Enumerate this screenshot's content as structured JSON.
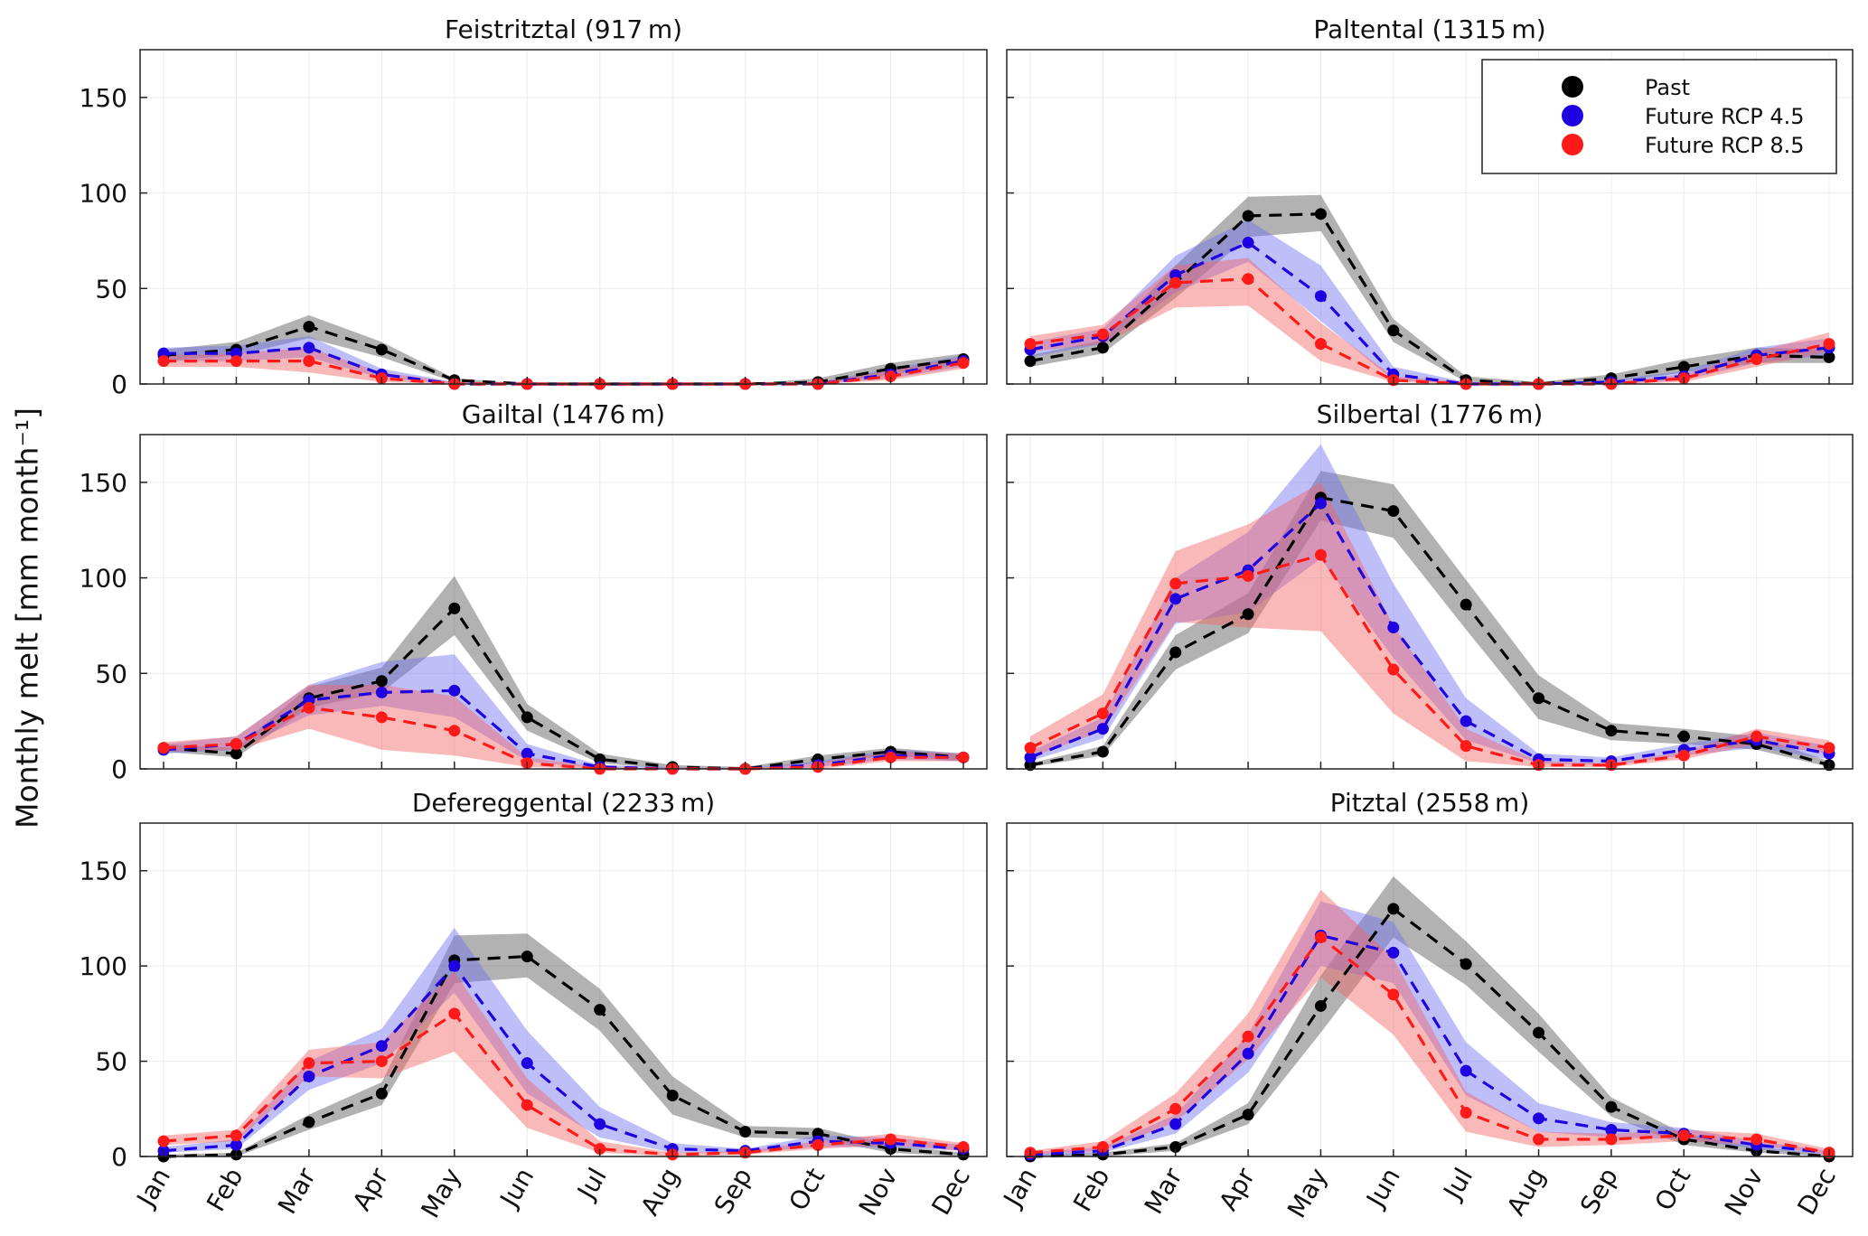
{
  "chart_data": {
    "type": "line",
    "ylabel": "Monthly melt [mm month⁻¹]",
    "ylim": [
      0,
      175
    ],
    "yticks": [
      0,
      50,
      100,
      150
    ],
    "categories": [
      "Jan",
      "Feb",
      "Mar",
      "Apr",
      "May",
      "Jun",
      "Jul",
      "Aug",
      "Sep",
      "Oct",
      "Nov",
      "Dec"
    ],
    "legend": {
      "placement": "top-right of Paltental panel",
      "entries": [
        {
          "name": "Past",
          "color": "#000000"
        },
        {
          "name": "Future RCP 4.5",
          "color": "#1f00e0"
        },
        {
          "name": "Future RCP 8.5",
          "color": "#ff1a1a"
        }
      ]
    },
    "band_colors": {
      "Past": "#555555",
      "Future RCP 4.5": "#6f6ff2",
      "Future RCP 8.5": "#f56464"
    },
    "panels": [
      {
        "title": "Feistritztal (917 m)",
        "series": [
          {
            "name": "Past",
            "values": [
              15,
              18,
              30,
              18,
              2,
              0,
              0,
              0,
              0,
              1,
              8,
              13
            ],
            "lower": [
              12,
              15,
              24,
              14,
              1,
              0,
              0,
              0,
              0,
              0,
              5,
              10
            ],
            "upper": [
              18,
              22,
              36,
              22,
              3,
              0,
              0,
              0,
              0,
              3,
              11,
              16
            ]
          },
          {
            "name": "Future RCP 4.5",
            "values": [
              16,
              16,
              19,
              5,
              0,
              0,
              0,
              0,
              0,
              0,
              5,
              12
            ],
            "lower": [
              12,
              12,
              14,
              3,
              0,
              0,
              0,
              0,
              0,
              0,
              3,
              9
            ],
            "upper": [
              19,
              20,
              25,
              8,
              1,
              0,
              0,
              0,
              0,
              1,
              8,
              15
            ]
          },
          {
            "name": "Future RCP 8.5",
            "values": [
              12,
              12,
              12,
              3,
              0,
              0,
              0,
              0,
              0,
              0,
              4,
              11
            ],
            "lower": [
              9,
              9,
              6,
              1,
              0,
              0,
              0,
              0,
              0,
              0,
              2,
              8
            ],
            "upper": [
              15,
              16,
              19,
              6,
              1,
              0,
              0,
              0,
              0,
              1,
              7,
              14
            ]
          }
        ]
      },
      {
        "title": "Paltental (1315 m)",
        "series": [
          {
            "name": "Past",
            "values": [
              12,
              19,
              53,
              88,
              89,
              28,
              2,
              0,
              3,
              9,
              15,
              14
            ],
            "lower": [
              9,
              16,
              45,
              77,
              80,
              22,
              1,
              0,
              1,
              6,
              11,
              11
            ],
            "upper": [
              15,
              23,
              62,
              98,
              99,
              34,
              4,
              1,
              5,
              13,
              19,
              18
            ]
          },
          {
            "name": "Future RCP 4.5",
            "values": [
              18,
              25,
              57,
              74,
              46,
              5,
              0,
              0,
              1,
              4,
              15,
              19
            ],
            "lower": [
              14,
              21,
              48,
              64,
              33,
              2,
              0,
              0,
              0,
              2,
              11,
              15
            ],
            "upper": [
              22,
              29,
              67,
              86,
              62,
              9,
              1,
              0,
              2,
              7,
              19,
              24
            ]
          },
          {
            "name": "Future RCP 8.5",
            "values": [
              21,
              26,
              53,
              55,
              21,
              2,
              0,
              0,
              0,
              3,
              13,
              21
            ],
            "lower": [
              17,
              21,
              40,
              41,
              12,
              1,
              0,
              0,
              0,
              1,
              9,
              17
            ],
            "upper": [
              25,
              31,
              62,
              66,
              32,
              4,
              1,
              0,
              1,
              5,
              17,
              27
            ]
          }
        ]
      },
      {
        "title": "Gailtal (1476 m)",
        "series": [
          {
            "name": "Past",
            "values": [
              11,
              8,
              37,
              46,
              84,
              27,
              5,
              1,
              0,
              5,
              9,
              6
            ],
            "lower": [
              9,
              6,
              32,
              40,
              70,
              20,
              3,
              0,
              0,
              3,
              7,
              4
            ],
            "upper": [
              13,
              11,
              43,
              53,
              101,
              34,
              8,
              2,
              1,
              7,
              11,
              8
            ]
          },
          {
            "name": "Future RCP 4.5",
            "values": [
              10,
              13,
              36,
              40,
              41,
              8,
              1,
              0,
              0,
              2,
              7,
              6
            ],
            "lower": [
              8,
              10,
              28,
              33,
              27,
              4,
              0,
              0,
              0,
              1,
              5,
              4
            ],
            "upper": [
              13,
              17,
              44,
              56,
              60,
              13,
              2,
              1,
              0,
              4,
              10,
              8
            ]
          },
          {
            "name": "Future RCP 8.5",
            "values": [
              11,
              13,
              32,
              27,
              20,
              3,
              0,
              0,
              0,
              1,
              6,
              6
            ],
            "lower": [
              9,
              10,
              21,
              10,
              7,
              1,
              0,
              0,
              0,
              0,
              4,
              4
            ],
            "upper": [
              14,
              17,
              44,
              44,
              38,
              6,
              1,
              0,
              0,
              3,
              9,
              8
            ]
          }
        ]
      },
      {
        "title": "Silbertal (1776 m)",
        "series": [
          {
            "name": "Past",
            "values": [
              2,
              9,
              61,
              81,
              142,
              135,
              86,
              37,
              20,
              17,
              13,
              2
            ],
            "lower": [
              1,
              7,
              52,
              71,
              130,
              121,
              73,
              26,
              15,
              13,
              10,
              1
            ],
            "upper": [
              3,
              12,
              70,
              92,
              156,
              149,
              99,
              49,
              24,
              21,
              17,
              4
            ]
          },
          {
            "name": "Future RCP 4.5",
            "values": [
              6,
              21,
              89,
              104,
              139,
              74,
              25,
              5,
              4,
              10,
              15,
              8
            ],
            "lower": [
              4,
              16,
              76,
              82,
              110,
              58,
              15,
              3,
              2,
              7,
              11,
              5
            ],
            "upper": [
              9,
              27,
              100,
              124,
              170,
              97,
              37,
              8,
              6,
              13,
              19,
              12
            ]
          },
          {
            "name": "Future RCP 8.5",
            "values": [
              11,
              29,
              97,
              101,
              112,
              52,
              12,
              2,
              2,
              7,
              17,
              11
            ],
            "lower": [
              6,
              20,
              77,
              74,
              72,
              29,
              4,
              1,
              1,
              5,
              13,
              8
            ],
            "upper": [
              17,
              39,
              114,
              128,
              150,
              75,
              21,
              4,
              3,
              9,
              21,
              15
            ]
          }
        ]
      },
      {
        "title": "Defereggental (2233 m)",
        "series": [
          {
            "name": "Past",
            "values": [
              0,
              1,
              18,
              33,
              103,
              105,
              77,
              32,
              13,
              12,
              4,
              1
            ],
            "lower": [
              0,
              0,
              14,
              27,
              91,
              94,
              66,
              22,
              10,
              9,
              2,
              0
            ],
            "upper": [
              1,
              2,
              22,
              39,
              116,
              117,
              88,
              42,
              16,
              15,
              6,
              2
            ]
          },
          {
            "name": "Future RCP 4.5",
            "values": [
              3,
              6,
              42,
              58,
              100,
              49,
              17,
              4,
              3,
              8,
              7,
              4
            ],
            "lower": [
              2,
              4,
              35,
              49,
              86,
              33,
              10,
              2,
              2,
              5,
              5,
              3
            ],
            "upper": [
              5,
              9,
              50,
              67,
              120,
              66,
              26,
              7,
              4,
              11,
              10,
              6
            ]
          },
          {
            "name": "Future RCP 8.5",
            "values": [
              8,
              11,
              49,
              50,
              75,
              27,
              4,
              1,
              2,
              6,
              9,
              5
            ],
            "lower": [
              6,
              8,
              42,
              41,
              55,
              15,
              2,
              0,
              1,
              4,
              6,
              3
            ],
            "upper": [
              11,
              14,
              56,
              60,
              97,
              41,
              8,
              2,
              3,
              8,
              12,
              7
            ]
          }
        ]
      },
      {
        "title": "Pitztal (2558 m)",
        "series": [
          {
            "name": "Past",
            "values": [
              0,
              1,
              5,
              22,
              79,
              130,
              101,
              65,
              26,
              9,
              3,
              0
            ],
            "lower": [
              0,
              0,
              3,
              17,
              65,
              115,
              90,
              55,
              21,
              6,
              2,
              0
            ],
            "upper": [
              1,
              2,
              7,
              28,
              95,
              147,
              113,
              75,
              31,
              12,
              5,
              1
            ]
          },
          {
            "name": "Future RCP 4.5",
            "values": [
              1,
              3,
              17,
              54,
              116,
              107,
              45,
              20,
              14,
              12,
              6,
              2
            ],
            "lower": [
              0,
              2,
              12,
              44,
              100,
              91,
              32,
              13,
              10,
              9,
              4,
              1
            ],
            "upper": [
              2,
              5,
              22,
              64,
              134,
              123,
              60,
              28,
              18,
              15,
              8,
              3
            ]
          },
          {
            "name": "Future RCP 8.5",
            "values": [
              2,
              5,
              25,
              63,
              115,
              85,
              23,
              9,
              9,
              11,
              9,
              2
            ],
            "lower": [
              1,
              3,
              18,
              51,
              94,
              64,
              13,
              5,
              6,
              8,
              6,
              1
            ],
            "upper": [
              3,
              8,
              33,
              75,
              140,
              104,
              34,
              13,
              12,
              14,
              12,
              4
            ]
          }
        ]
      }
    ]
  }
}
